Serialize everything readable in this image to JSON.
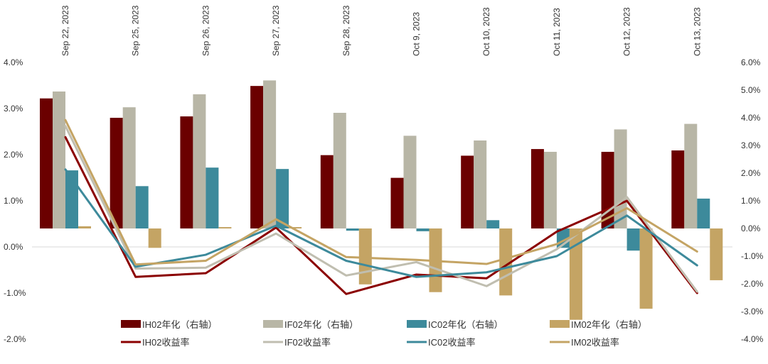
{
  "chart_data": {
    "type": "bar",
    "categories": [
      "Sep 22, 2023",
      "Sep 25, 2023",
      "Sep 26, 2023",
      "Sep 27, 2023",
      "Sep 28, 2023",
      "Oct 9, 2023",
      "Oct 10, 2023",
      "Oct 11, 2023",
      "Oct 12, 2023",
      "Oct 13, 2023"
    ],
    "left_axis": {
      "ylim": [
        -2.0,
        4.0
      ],
      "ticks": [
        "4.0%",
        "3.0%",
        "2.0%",
        "1.0%",
        "0.0%",
        "-1.0%",
        "-2.0%"
      ]
    },
    "right_axis": {
      "ylim": [
        -4.0,
        6.0
      ],
      "ticks": [
        "6.0%",
        "5.0%",
        "4.0%",
        "3.0%",
        "2.0%",
        "1.0%",
        "0.0%",
        "-1.0%",
        "-2.0%",
        "-3.0%",
        "-4.0%"
      ]
    },
    "bar_series": [
      {
        "name": "IH02年化（右轴）",
        "color": "#6b0000",
        "axis": "right",
        "values": [
          4.7,
          4.0,
          4.05,
          5.15,
          2.65,
          1.83,
          2.63,
          2.87,
          2.77,
          2.82
        ]
      },
      {
        "name": "IF02年化（右轴）",
        "color": "#b8b6a6",
        "axis": "right",
        "values": [
          4.95,
          4.38,
          4.85,
          5.35,
          4.18,
          3.35,
          3.18,
          2.77,
          3.58,
          3.78
        ]
      },
      {
        "name": "IC02年化（右轴）",
        "color": "#3d8a9b",
        "axis": "right",
        "values": [
          2.1,
          1.53,
          2.2,
          2.15,
          -0.08,
          -0.1,
          0.3,
          -0.7,
          -0.8,
          1.08
        ]
      },
      {
        "name": "IM02年化（右轴）",
        "color": "#c4a464",
        "axis": "right",
        "values": [
          0.08,
          -0.7,
          0.05,
          0.05,
          -2.02,
          -2.3,
          -2.42,
          -3.3,
          -2.9,
          -1.87
        ]
      }
    ],
    "line_series": [
      {
        "name": "IH02收益率",
        "color": "#8b0000",
        "axis": "left",
        "values": [
          2.38,
          -0.65,
          -0.57,
          0.42,
          -1.02,
          -0.6,
          -0.68,
          0.33,
          1.0,
          -1.0
        ]
      },
      {
        "name": "IF02收益率",
        "color": "#c0beb0",
        "axis": "left",
        "values": [
          2.62,
          -0.47,
          -0.45,
          0.29,
          -0.62,
          -0.33,
          -0.85,
          -0.05,
          1.08,
          -0.97
        ]
      },
      {
        "name": "IC02收益率",
        "color": "#3d8a9b",
        "axis": "left",
        "values": [
          1.68,
          -0.43,
          -0.17,
          0.46,
          -0.3,
          -0.65,
          -0.55,
          -0.2,
          0.68,
          -0.4
        ]
      },
      {
        "name": "IM02收益率",
        "color": "#c4a464",
        "axis": "left",
        "values": [
          2.75,
          -0.38,
          -0.3,
          0.6,
          -0.22,
          -0.28,
          -0.37,
          0.06,
          0.84,
          -0.1
        ]
      }
    ],
    "grid": false,
    "legend": "bottom"
  }
}
